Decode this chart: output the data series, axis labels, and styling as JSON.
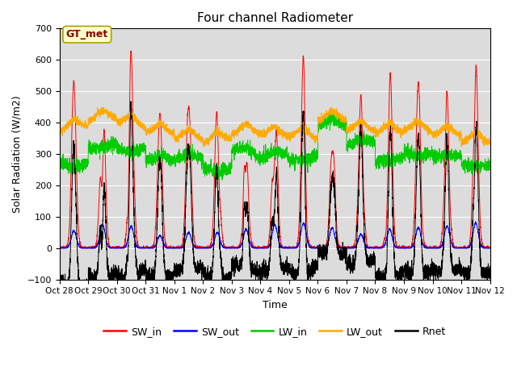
{
  "title": "Four channel Radiometer",
  "xlabel": "Time",
  "ylabel": "Solar Radiation (W/m2)",
  "ylim": [
    -100,
    700
  ],
  "yticks": [
    -100,
    0,
    100,
    200,
    300,
    400,
    500,
    600,
    700
  ],
  "annotation": "GT_met",
  "bg_color": "#dcdcdc",
  "colors": {
    "SW_in": "#ff0000",
    "SW_out": "#0000ff",
    "LW_in": "#00cc00",
    "LW_out": "#ffaa00",
    "Rnet": "#000000"
  },
  "xtick_labels": [
    "Oct 28",
    "Oct 29",
    "Oct 30",
    "Oct 31",
    "Nov 1",
    "Nov 2",
    "Nov 3",
    "Nov 4",
    "Nov 5",
    "Nov 6",
    "Nov 7",
    "Nov 8",
    "Nov 9",
    "Nov 10",
    "Nov 11",
    "Nov 12"
  ]
}
